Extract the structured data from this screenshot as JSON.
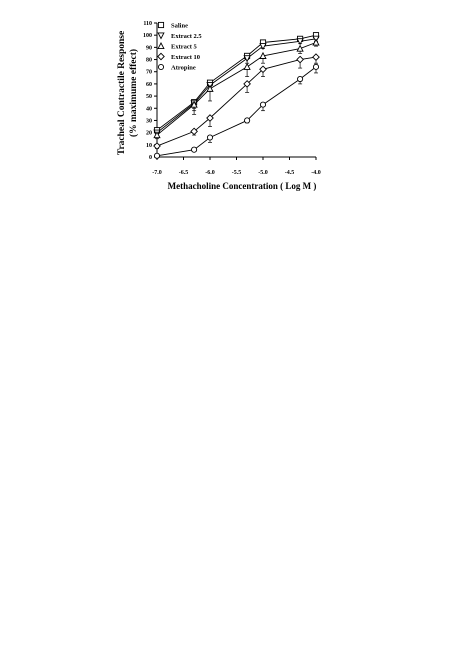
{
  "chart_data": {
    "type": "line",
    "title": "",
    "xlabel": "Methacholine Concentration ( Log M )",
    "ylabel_line1": "Tracheal Contractile Response",
    "ylabel_line2": "(% maximume effect)",
    "x_ticks": [
      "-7.0",
      "-6.5",
      "-6.0",
      "-5.5",
      "-5.0",
      "-4.5",
      "-4.0"
    ],
    "y_ticks": [
      "0",
      "10",
      "20",
      "30",
      "40",
      "50",
      "60",
      "70",
      "80",
      "90",
      "100",
      "110"
    ],
    "xlim": [
      -7.0,
      -4.0
    ],
    "ylim": [
      0,
      110
    ],
    "legend_position": "top-left",
    "series": [
      {
        "name": "Saline",
        "marker": "square",
        "x": [
          -7.0,
          -6.3,
          -6.0,
          -5.3,
          -5.0,
          -4.3,
          -4.0
        ],
        "y": [
          22,
          45,
          61,
          83,
          94,
          97,
          100
        ],
        "err": [
          3,
          5,
          3,
          3,
          2,
          2,
          2
        ]
      },
      {
        "name": "Extract 2.5",
        "marker": "triangle-down",
        "x": [
          -7.0,
          -6.3,
          -6.0,
          -5.3,
          -5.0,
          -4.3,
          -4.0
        ],
        "y": [
          20,
          44,
          59,
          81,
          91,
          95,
          97
        ],
        "err": [
          3,
          6,
          4,
          4,
          2,
          2,
          2
        ]
      },
      {
        "name": "Extract 5",
        "marker": "triangle-up",
        "x": [
          -7.0,
          -6.3,
          -6.0,
          -5.3,
          -5.0,
          -4.3,
          -4.0
        ],
        "y": [
          18,
          43,
          56,
          74,
          83,
          89,
          94
        ],
        "err": [
          3,
          8,
          10,
          8,
          6,
          4,
          3
        ]
      },
      {
        "name": "Extract 10",
        "marker": "diamond",
        "x": [
          -7.0,
          -6.3,
          -6.0,
          -5.3,
          -5.0,
          -4.3,
          -4.0
        ],
        "y": [
          9,
          21,
          32,
          60,
          72,
          80,
          82
        ],
        "err": [
          2,
          3,
          7,
          7,
          6,
          7,
          5
        ]
      },
      {
        "name": "Atropine",
        "marker": "circle",
        "x": [
          -7.0,
          -6.3,
          -6.0,
          -5.3,
          -5.0,
          -4.3,
          -4.0
        ],
        "y": [
          1,
          6,
          16,
          30,
          43,
          64,
          74
        ],
        "err": [
          1,
          1,
          4,
          2,
          5,
          4,
          5
        ]
      }
    ]
  }
}
